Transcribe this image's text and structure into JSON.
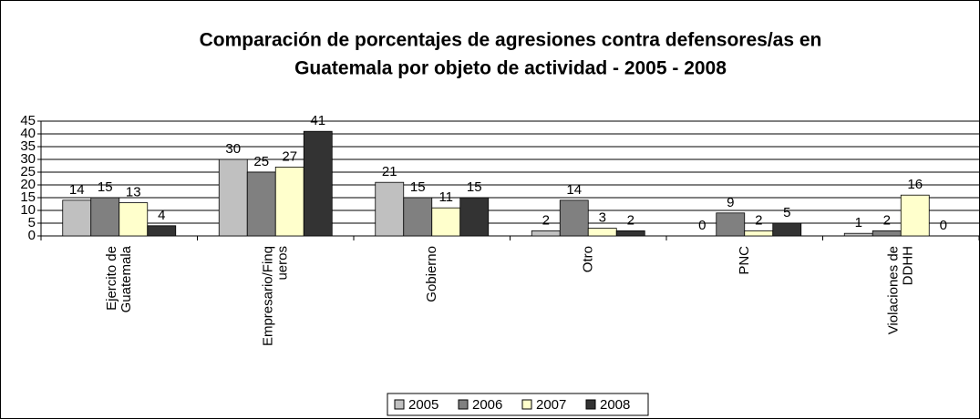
{
  "chart_data": {
    "type": "bar",
    "title": [
      "Comparación de porcentajes de agresiones contra defensores/as en",
      "Guatemala por objeto de actividad - 2005 - 2008"
    ],
    "categories": [
      "Ejercito de\nGuatemala",
      "Empresario/Finq\nueros",
      "Gobierno",
      "Otro",
      "PNC",
      "Violaciones de\nDDHH"
    ],
    "series": [
      {
        "name": "2005",
        "color": "#c0c0c0",
        "values": [
          14,
          30,
          21,
          2,
          0,
          1
        ]
      },
      {
        "name": "2006",
        "color": "#808080",
        "values": [
          15,
          25,
          15,
          14,
          9,
          2
        ]
      },
      {
        "name": "2007",
        "color": "#ffffcc",
        "values": [
          13,
          27,
          11,
          3,
          2,
          16
        ]
      },
      {
        "name": "2008",
        "color": "#333333",
        "values": [
          4,
          41,
          15,
          2,
          5,
          0
        ]
      }
    ],
    "ylim": [
      0,
      45
    ],
    "yticks": [
      0,
      5,
      10,
      15,
      20,
      25,
      30,
      35,
      40,
      45
    ],
    "grid": true,
    "legend": "bottom"
  }
}
